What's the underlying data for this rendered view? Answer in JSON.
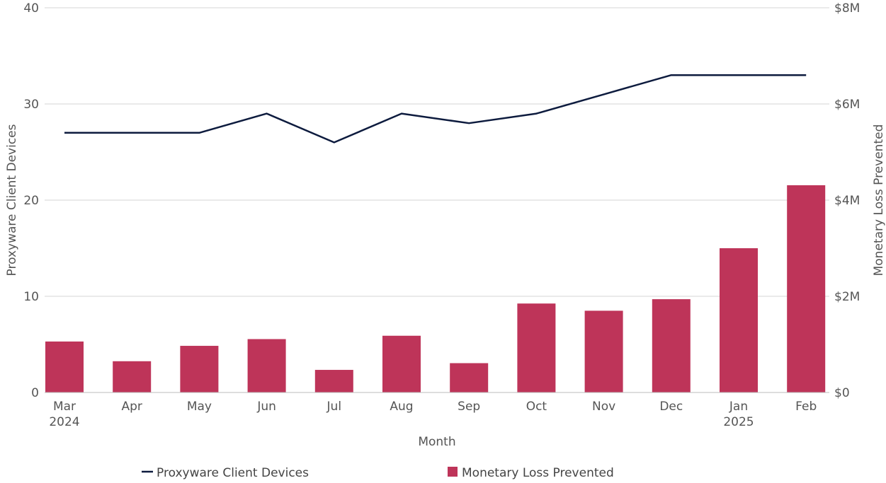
{
  "chart_data": {
    "type": "bar+line",
    "categories": [
      "Mar",
      "Apr",
      "May",
      "Jun",
      "Jul",
      "Aug",
      "Sep",
      "Oct",
      "Nov",
      "Dec",
      "Jan",
      "Feb"
    ],
    "category_sublabels": [
      "2024",
      "",
      "",
      "",
      "",
      "",
      "",
      "",
      "",
      "",
      "2025",
      ""
    ],
    "xlabel": "Month",
    "ylabel_left": "Proxyware Client Devices",
    "ylabel_right": "Monetary Loss Prevented",
    "ylim_left": [
      0,
      40
    ],
    "ylim_right": [
      0,
      8000000
    ],
    "left_ticks": [
      0,
      10,
      20,
      30,
      40
    ],
    "left_tick_labels": [
      "0",
      "10",
      "20",
      "30",
      "40"
    ],
    "right_ticks": [
      0,
      2000000,
      4000000,
      6000000,
      8000000
    ],
    "right_tick_labels": [
      "$0",
      "$2M",
      "$4M",
      "$6M",
      "$8M"
    ],
    "grid": true,
    "legend_position": "bottom",
    "series": [
      {
        "name": "Proxyware Client Devices",
        "type": "line",
        "axis": "left",
        "color": "#0d1b3e",
        "values": [
          27,
          27,
          27,
          29,
          26,
          29,
          28,
          29,
          31,
          33,
          33,
          33
        ]
      },
      {
        "name": "Monetary Loss Prevented",
        "type": "bar",
        "axis": "right",
        "color": "#be3459",
        "values": [
          1060000,
          650000,
          970000,
          1110000,
          470000,
          1180000,
          610000,
          1850000,
          1700000,
          1940000,
          3000000,
          4310000
        ]
      }
    ]
  }
}
